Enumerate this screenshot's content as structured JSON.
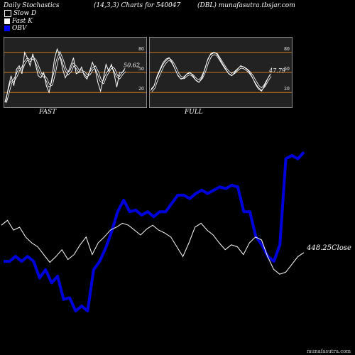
{
  "header": {
    "left": "Daily Stochastics",
    "center": "(14,3,3) Charts for 540047",
    "right": "(DBL) munafasutra.tbsjar.com"
  },
  "legend": [
    {
      "label": "Slow  D",
      "color": "#000000"
    },
    {
      "label": "Fast K",
      "color": "#ffffff"
    },
    {
      "label": "OBV",
      "color": "#0000ff"
    }
  ],
  "colors": {
    "background": "#000000",
    "panel": "#222222",
    "refline": "#c8781e",
    "obv": "#0000dd",
    "price": "#ffffff"
  },
  "watermark": "munafasutra.com",
  "chart_data": [
    {
      "type": "line",
      "name": "stoch-fast",
      "label": "FAST",
      "value_label": "50.62",
      "ylim": [
        0,
        100
      ],
      "ticks": [
        80,
        50,
        20
      ],
      "refs": [
        80,
        50,
        20
      ],
      "series": [
        {
          "name": "Fast K",
          "values": [
            5,
            28,
            45,
            30,
            55,
            60,
            48,
            80,
            72,
            60,
            78,
            62,
            45,
            42,
            50,
            30,
            20,
            40,
            70,
            85,
            75,
            55,
            42,
            50,
            60,
            72,
            48,
            50,
            58,
            45,
            40,
            52,
            65,
            55,
            35,
            22,
            40,
            62,
            52,
            62,
            48,
            28,
            50,
            50,
            56
          ]
        },
        {
          "name": "Slow  D",
          "values": [
            5,
            20,
            35,
            38,
            45,
            55,
            55,
            65,
            70,
            68,
            72,
            68,
            58,
            48,
            45,
            40,
            30,
            32,
            48,
            68,
            78,
            68,
            55,
            48,
            52,
            62,
            58,
            52,
            52,
            50,
            45,
            48,
            55,
            58,
            50,
            38,
            35,
            45,
            52,
            58,
            55,
            45,
            42,
            48,
            52
          ]
        }
      ]
    },
    {
      "type": "line",
      "name": "stoch-full",
      "label": "FULL",
      "value_label": "47.79",
      "ylim": [
        0,
        100
      ],
      "ticks": [
        80,
        50,
        20
      ],
      "refs": [
        80,
        50,
        20
      ],
      "series": [
        {
          "name": "Fast K",
          "values": [
            25,
            30,
            45,
            55,
            65,
            70,
            72,
            65,
            55,
            45,
            40,
            42,
            48,
            50,
            45,
            38,
            35,
            42,
            55,
            70,
            78,
            80,
            78,
            70,
            62,
            55,
            48,
            45,
            50,
            55,
            60,
            58,
            55,
            50,
            42,
            32,
            25,
            22,
            30,
            40,
            48
          ]
        },
        {
          "name": "Slow  D",
          "values": [
            22,
            27,
            40,
            50,
            60,
            66,
            70,
            66,
            58,
            48,
            42,
            42,
            46,
            48,
            45,
            40,
            37,
            42,
            52,
            66,
            75,
            78,
            77,
            70,
            63,
            56,
            50,
            47,
            50,
            54,
            58,
            57,
            54,
            50,
            44,
            36,
            29,
            25,
            30,
            38,
            45
          ]
        }
      ]
    },
    {
      "type": "line",
      "name": "price-obv",
      "price_label": "448.25",
      "price_suffix": "Close",
      "ylim": [
        0,
        100
      ],
      "series": [
        {
          "name": "OBV",
          "values": [
            30,
            30,
            33,
            30,
            33,
            30,
            20,
            25,
            17,
            21,
            7,
            8,
            0,
            3,
            0,
            25,
            30,
            38,
            48,
            60,
            67,
            60,
            61,
            58,
            60,
            57,
            60,
            60,
            65,
            70,
            70,
            68,
            71,
            73,
            71,
            73,
            75,
            74,
            76,
            75,
            60,
            60,
            45,
            40,
            33,
            30,
            40,
            92,
            94,
            92,
            96
          ]
        },
        {
          "name": "Price",
          "values": [
            60,
            65,
            55,
            58,
            48,
            42,
            38,
            30,
            22,
            28,
            35,
            25,
            30,
            40,
            48,
            30,
            42,
            48,
            55,
            58,
            62,
            60,
            55,
            50,
            56,
            60,
            55,
            52,
            48,
            38,
            28,
            42,
            58,
            62,
            55,
            50,
            42,
            35,
            40,
            38,
            30,
            42,
            48,
            45,
            28,
            15,
            10,
            12,
            20,
            28,
            32
          ]
        }
      ]
    }
  ]
}
